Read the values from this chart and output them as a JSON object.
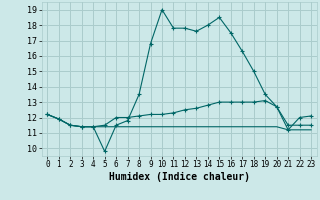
{
  "xlabel": "Humidex (Indice chaleur)",
  "bg_color": "#cce8e8",
  "grid_color": "#aacccc",
  "line_color": "#006666",
  "xlim": [
    -0.5,
    23.5
  ],
  "ylim": [
    9.5,
    19.5
  ],
  "xticks": [
    0,
    1,
    2,
    3,
    4,
    5,
    6,
    7,
    8,
    9,
    10,
    11,
    12,
    13,
    14,
    15,
    16,
    17,
    18,
    19,
    20,
    21,
    22,
    23
  ],
  "yticks": [
    10,
    11,
    12,
    13,
    14,
    15,
    16,
    17,
    18,
    19
  ],
  "series1": [
    12.2,
    11.9,
    11.5,
    11.4,
    11.4,
    9.8,
    11.5,
    11.8,
    13.5,
    16.8,
    19.0,
    17.8,
    17.8,
    17.6,
    18.0,
    18.5,
    17.5,
    16.3,
    15.0,
    13.5,
    12.7,
    11.2,
    12.0,
    12.1
  ],
  "series2": [
    12.2,
    11.9,
    11.5,
    11.4,
    11.4,
    11.5,
    12.0,
    12.0,
    12.1,
    12.2,
    12.2,
    12.3,
    12.5,
    12.6,
    12.8,
    13.0,
    13.0,
    13.0,
    13.0,
    13.1,
    12.7,
    11.5,
    11.5,
    11.5
  ],
  "series3": [
    12.2,
    11.9,
    11.5,
    11.4,
    11.4,
    11.4,
    11.4,
    11.4,
    11.4,
    11.4,
    11.4,
    11.4,
    11.4,
    11.4,
    11.4,
    11.4,
    11.4,
    11.4,
    11.4,
    11.4,
    11.4,
    11.2,
    11.2,
    11.2
  ]
}
